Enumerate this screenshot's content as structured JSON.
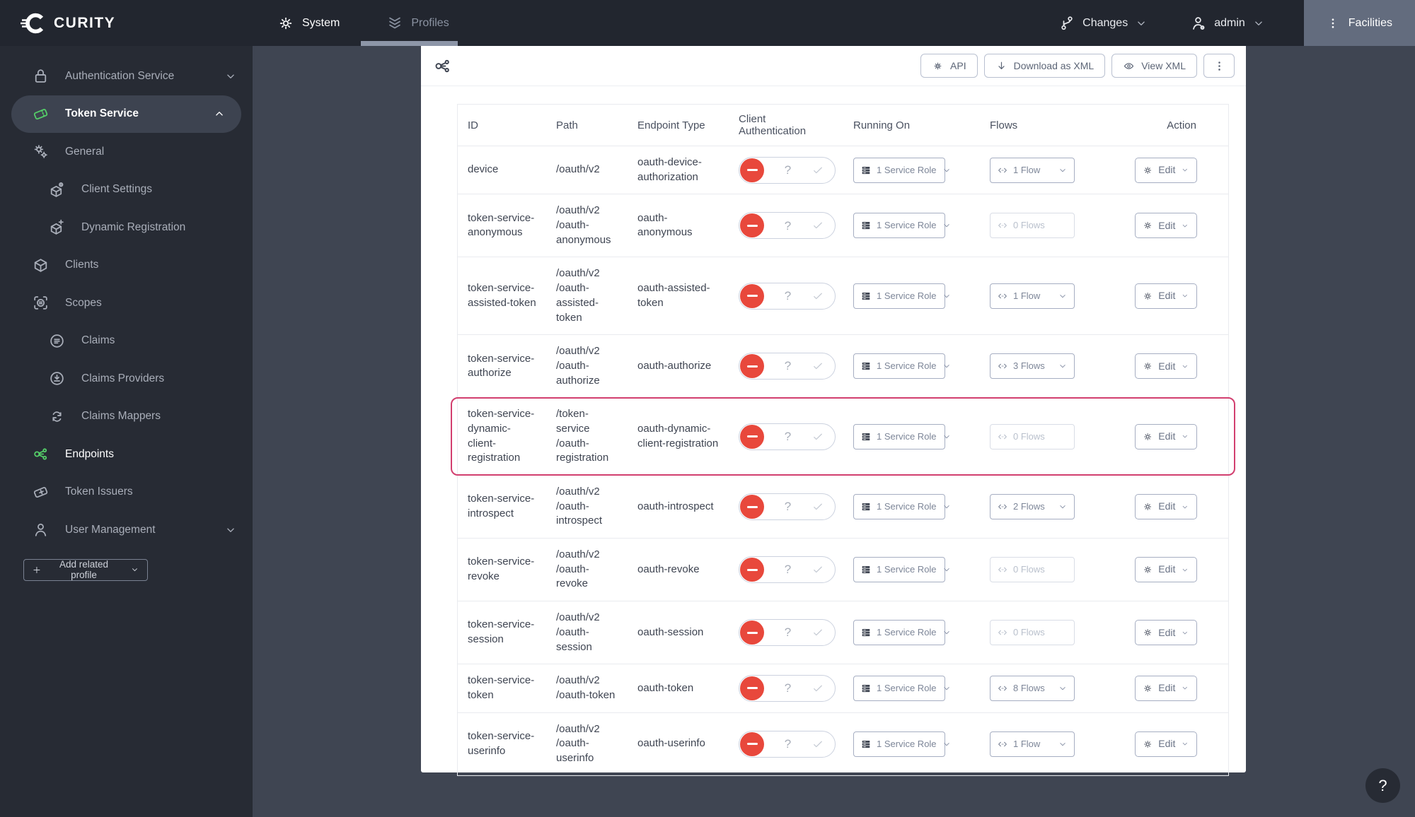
{
  "navbar": {
    "brand": "CURITY",
    "tabs": [
      {
        "label": "System",
        "icon": "gear-icon",
        "active": true
      },
      {
        "label": "Profiles",
        "icon": "layers-icon",
        "underlined": true
      }
    ],
    "changes_label": "Changes",
    "user_label": "admin",
    "facilities_label": "Facilities"
  },
  "sidebar": {
    "items": [
      {
        "label": "Authentication Service",
        "icon": "lock-icon",
        "chevron": "down"
      },
      {
        "label": "Token Service",
        "icon": "ticket-icon",
        "chevron": "up",
        "pill": true,
        "green": true
      },
      {
        "label": "General",
        "icon": "gears-icon"
      },
      {
        "label": "Client Settings",
        "icon": "cube-gear-icon",
        "indent": true
      },
      {
        "label": "Dynamic Registration",
        "icon": "cube-plus-icon",
        "indent": true
      },
      {
        "label": "Clients",
        "icon": "cube-icon"
      },
      {
        "label": "Scopes",
        "icon": "scope-icon"
      },
      {
        "label": "Claims",
        "icon": "claims-icon",
        "indent": true
      },
      {
        "label": "Claims Providers",
        "icon": "claims-provider-icon",
        "indent": true
      },
      {
        "label": "Claims Mappers",
        "icon": "claims-mapper-icon",
        "indent": true
      },
      {
        "label": "Endpoints",
        "icon": "endpoints-icon",
        "active": true,
        "green": true
      },
      {
        "label": "Token Issuers",
        "icon": "ticket-plus-icon"
      },
      {
        "label": "User Management",
        "icon": "user-icon",
        "chevron": "down"
      }
    ],
    "add_profile_label": "Add related profile"
  },
  "toolbar": {
    "api_label": "API",
    "download_label": "Download as XML",
    "view_xml_label": "View XML"
  },
  "table": {
    "columns": [
      "ID",
      "Path",
      "Endpoint Type",
      "Client Authentication",
      "Running On",
      "Flows",
      "Action"
    ],
    "edit_label": "Edit",
    "client_auth": {
      "unknown_symbol": "?"
    },
    "rows": [
      {
        "id": "device",
        "path": "/oauth/v2",
        "type": "oauth-device-authorization",
        "running_on": "1 Service Role",
        "flows": "1 Flow",
        "flows_enabled": true,
        "highlight": false
      },
      {
        "id": "token-service-anonymous",
        "path": "/oauth/v2/oauth-anonymous",
        "type": "oauth-anonymous",
        "running_on": "1 Service Role",
        "flows": "0 Flows",
        "flows_enabled": false,
        "highlight": false
      },
      {
        "id": "token-service-assisted-token",
        "path": "/oauth/v2/oauth-assisted-token",
        "type": "oauth-assisted-token",
        "running_on": "1 Service Role",
        "flows": "1 Flow",
        "flows_enabled": true,
        "highlight": false
      },
      {
        "id": "token-service-authorize",
        "path": "/oauth/v2/oauth-authorize",
        "type": "oauth-authorize",
        "running_on": "1 Service Role",
        "flows": "3 Flows",
        "flows_enabled": true,
        "highlight": false
      },
      {
        "id": "token-service-dynamic-client-registration",
        "path": "/token-service/oauth-registration",
        "type": "oauth-dynamic-client-registration",
        "running_on": "1 Service Role",
        "flows": "0 Flows",
        "flows_enabled": false,
        "highlight": true
      },
      {
        "id": "token-service-introspect",
        "path": "/oauth/v2/oauth-introspect",
        "type": "oauth-introspect",
        "running_on": "1 Service Role",
        "flows": "2 Flows",
        "flows_enabled": true,
        "highlight": false
      },
      {
        "id": "token-service-revoke",
        "path": "/oauth/v2/oauth-revoke",
        "type": "oauth-revoke",
        "running_on": "1 Service Role",
        "flows": "0 Flows",
        "flows_enabled": false,
        "highlight": false
      },
      {
        "id": "token-service-session",
        "path": "/oauth/v2/oauth-session",
        "type": "oauth-session",
        "running_on": "1 Service Role",
        "flows": "0 Flows",
        "flows_enabled": false,
        "highlight": false
      },
      {
        "id": "token-service-token",
        "path": "/oauth/v2/oauth-token",
        "type": "oauth-token",
        "running_on": "1 Service Role",
        "flows": "8 Flows",
        "flows_enabled": true,
        "highlight": false
      },
      {
        "id": "token-service-userinfo",
        "path": "/oauth/v2/oauth-userinfo",
        "type": "oauth-userinfo",
        "running_on": "1 Service Role",
        "flows": "1 Flow",
        "flows_enabled": true,
        "highlight": false
      }
    ]
  },
  "help_label": "?",
  "colors": {
    "accent_green": "#55d069",
    "status_red": "#e8483c",
    "highlight_pink": "#d23f6f",
    "navbar_bg": "#22262f",
    "sidebar_bg": "#272b34",
    "content_bg": "#3f4552"
  }
}
